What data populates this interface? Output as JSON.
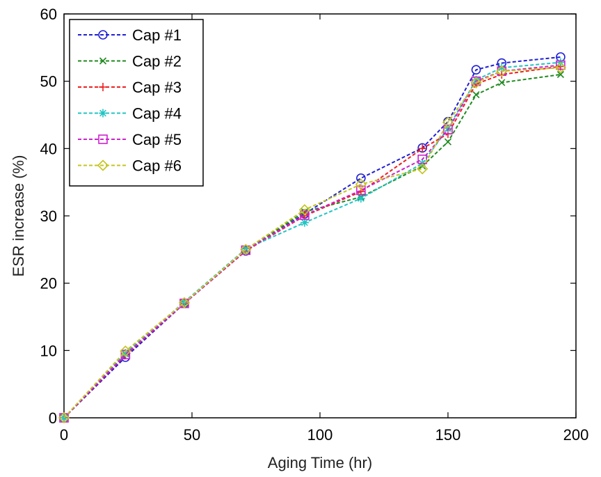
{
  "chart_data": {
    "type": "line",
    "title": "",
    "xlabel": "Aging Time (hr)",
    "ylabel": "ESR increase (%)",
    "xlim": [
      0,
      200
    ],
    "ylim": [
      0,
      60
    ],
    "xticks": [
      0,
      50,
      100,
      150,
      200
    ],
    "yticks": [
      0,
      10,
      20,
      30,
      40,
      50,
      60
    ],
    "grid": false,
    "legend_position": "top-left",
    "series": [
      {
        "name": "Cap #1",
        "color": "#1f1fd6",
        "marker": "circle",
        "points": [
          [
            0,
            0
          ],
          [
            24,
            9
          ],
          [
            47,
            17
          ],
          [
            71,
            24.8
          ],
          [
            94,
            30.3
          ],
          [
            116,
            35.6
          ],
          [
            140,
            40.1
          ],
          [
            150,
            44
          ],
          [
            161,
            51.7
          ],
          [
            171,
            52.7
          ],
          [
            194,
            53.6
          ]
        ]
      },
      {
        "name": "Cap #2",
        "color": "#1f8a1f",
        "marker": "x",
        "points": [
          [
            0,
            0
          ],
          [
            24,
            9.5
          ],
          [
            47,
            17
          ],
          [
            71,
            24.9
          ],
          [
            94,
            30.6
          ],
          [
            116,
            32.8
          ],
          [
            140,
            37.4
          ],
          [
            150,
            41
          ],
          [
            161,
            48
          ],
          [
            171,
            49.8
          ],
          [
            194,
            51
          ]
        ]
      },
      {
        "name": "Cap #3",
        "color": "#ee1f1f",
        "marker": "plus",
        "points": [
          [
            0,
            0
          ],
          [
            24,
            9.3
          ],
          [
            47,
            17
          ],
          [
            71,
            24.8
          ],
          [
            94,
            30
          ],
          [
            116,
            33.6
          ],
          [
            140,
            40
          ],
          [
            150,
            42.2
          ],
          [
            161,
            49.6
          ],
          [
            171,
            51
          ],
          [
            194,
            52.2
          ]
        ]
      },
      {
        "name": "Cap #4",
        "color": "#22c4c4",
        "marker": "star",
        "points": [
          [
            0,
            0
          ],
          [
            24,
            9.6
          ],
          [
            47,
            17.2
          ],
          [
            71,
            25.1
          ],
          [
            94,
            29
          ],
          [
            116,
            32.6
          ],
          [
            140,
            37.8
          ],
          [
            150,
            43
          ],
          [
            161,
            50.2
          ],
          [
            171,
            52
          ],
          [
            194,
            52.8
          ]
        ]
      },
      {
        "name": "Cap #5",
        "color": "#cc22cc",
        "marker": "square",
        "points": [
          [
            0,
            0
          ],
          [
            24,
            9.4
          ],
          [
            47,
            17
          ],
          [
            71,
            24.9
          ],
          [
            94,
            30.1
          ],
          [
            116,
            33.8
          ],
          [
            140,
            38.4
          ],
          [
            150,
            42.8
          ],
          [
            161,
            50
          ],
          [
            171,
            51.5
          ],
          [
            194,
            52.4
          ]
        ]
      },
      {
        "name": "Cap #6",
        "color": "#c4c41f",
        "marker": "diamond",
        "points": [
          [
            0,
            0
          ],
          [
            24,
            9.9
          ],
          [
            47,
            17.1
          ],
          [
            71,
            25
          ],
          [
            94,
            30.9
          ],
          [
            116,
            34.7
          ],
          [
            140,
            37
          ],
          [
            150,
            43.9
          ],
          [
            161,
            49.8
          ],
          [
            171,
            51.5
          ],
          [
            194,
            52
          ]
        ]
      }
    ]
  }
}
